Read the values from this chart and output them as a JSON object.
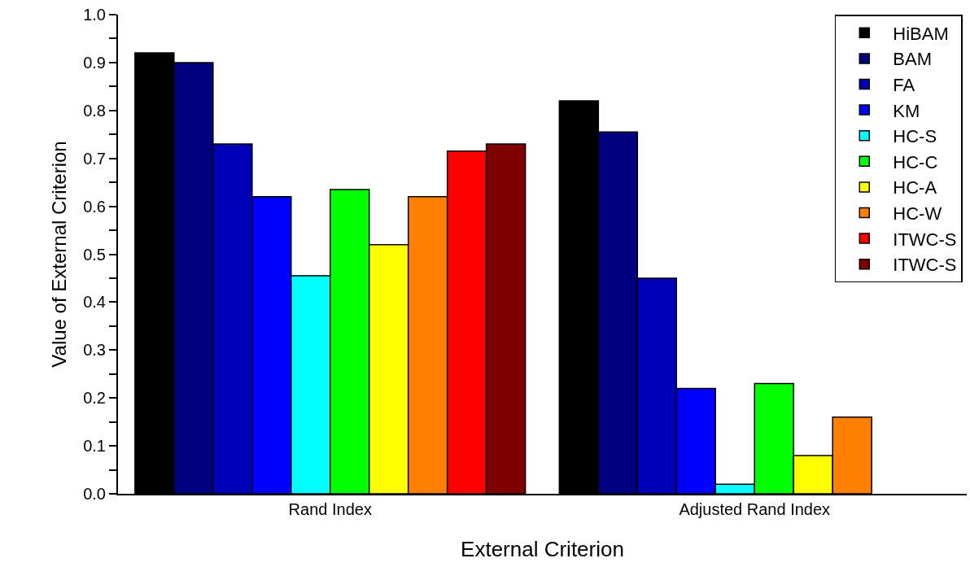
{
  "chart_data": {
    "type": "bar",
    "xlabel": "External Criterion",
    "ylabel": "Value of External Criterion",
    "categories": [
      "Rand Index",
      "Adjusted Rand Index"
    ],
    "series": [
      {
        "name": "HiBAM",
        "color": "#000000",
        "values": [
          0.92,
          0.82
        ]
      },
      {
        "name": "BAM",
        "color": "#000080",
        "values": [
          0.9,
          0.755
        ]
      },
      {
        "name": "FA",
        "color": "#0000b8",
        "values": [
          0.73,
          0.45
        ]
      },
      {
        "name": "KM",
        "color": "#0000ff",
        "values": [
          0.62,
          0.22
        ]
      },
      {
        "name": "HC-S",
        "color": "#00ffff",
        "values": [
          0.455,
          0.02
        ]
      },
      {
        "name": "HC-C",
        "color": "#00ff00",
        "values": [
          0.635,
          0.23
        ]
      },
      {
        "name": "HC-A",
        "color": "#ffff00",
        "values": [
          0.52,
          0.08
        ]
      },
      {
        "name": "HC-W",
        "color": "#ff8000",
        "values": [
          0.62,
          0.16
        ]
      },
      {
        "name": "ITWC-S",
        "color": "#ff0000",
        "values": [
          0.715,
          null
        ]
      },
      {
        "name": "ITWC-S",
        "color": "#800000",
        "values": [
          0.73,
          null
        ]
      }
    ],
    "ylim": [
      0,
      1
    ],
    "yticks": [
      {
        "value": 0,
        "label": "0.0"
      },
      {
        "value": 0.05,
        "label": null
      },
      0.1,
      {
        "value": 0.15,
        "label": null
      },
      0.2,
      {
        "value": 0.25,
        "label": null
      },
      0.3,
      {
        "value": 0.35,
        "label": null
      },
      0.4,
      {
        "value": 0.45,
        "label": null
      },
      0.5,
      {
        "value": 0.55,
        "label": null
      },
      0.6,
      {
        "value": 0.65,
        "label": null
      },
      0.7,
      {
        "value": 0.75,
        "label": null
      },
      0.8,
      {
        "value": 0.85,
        "label": null
      },
      0.9,
      {
        "value": 0.95,
        "label": null
      },
      {
        "value": 1,
        "label": "1.0"
      }
    ],
    "grid": false,
    "legend": "top right"
  }
}
